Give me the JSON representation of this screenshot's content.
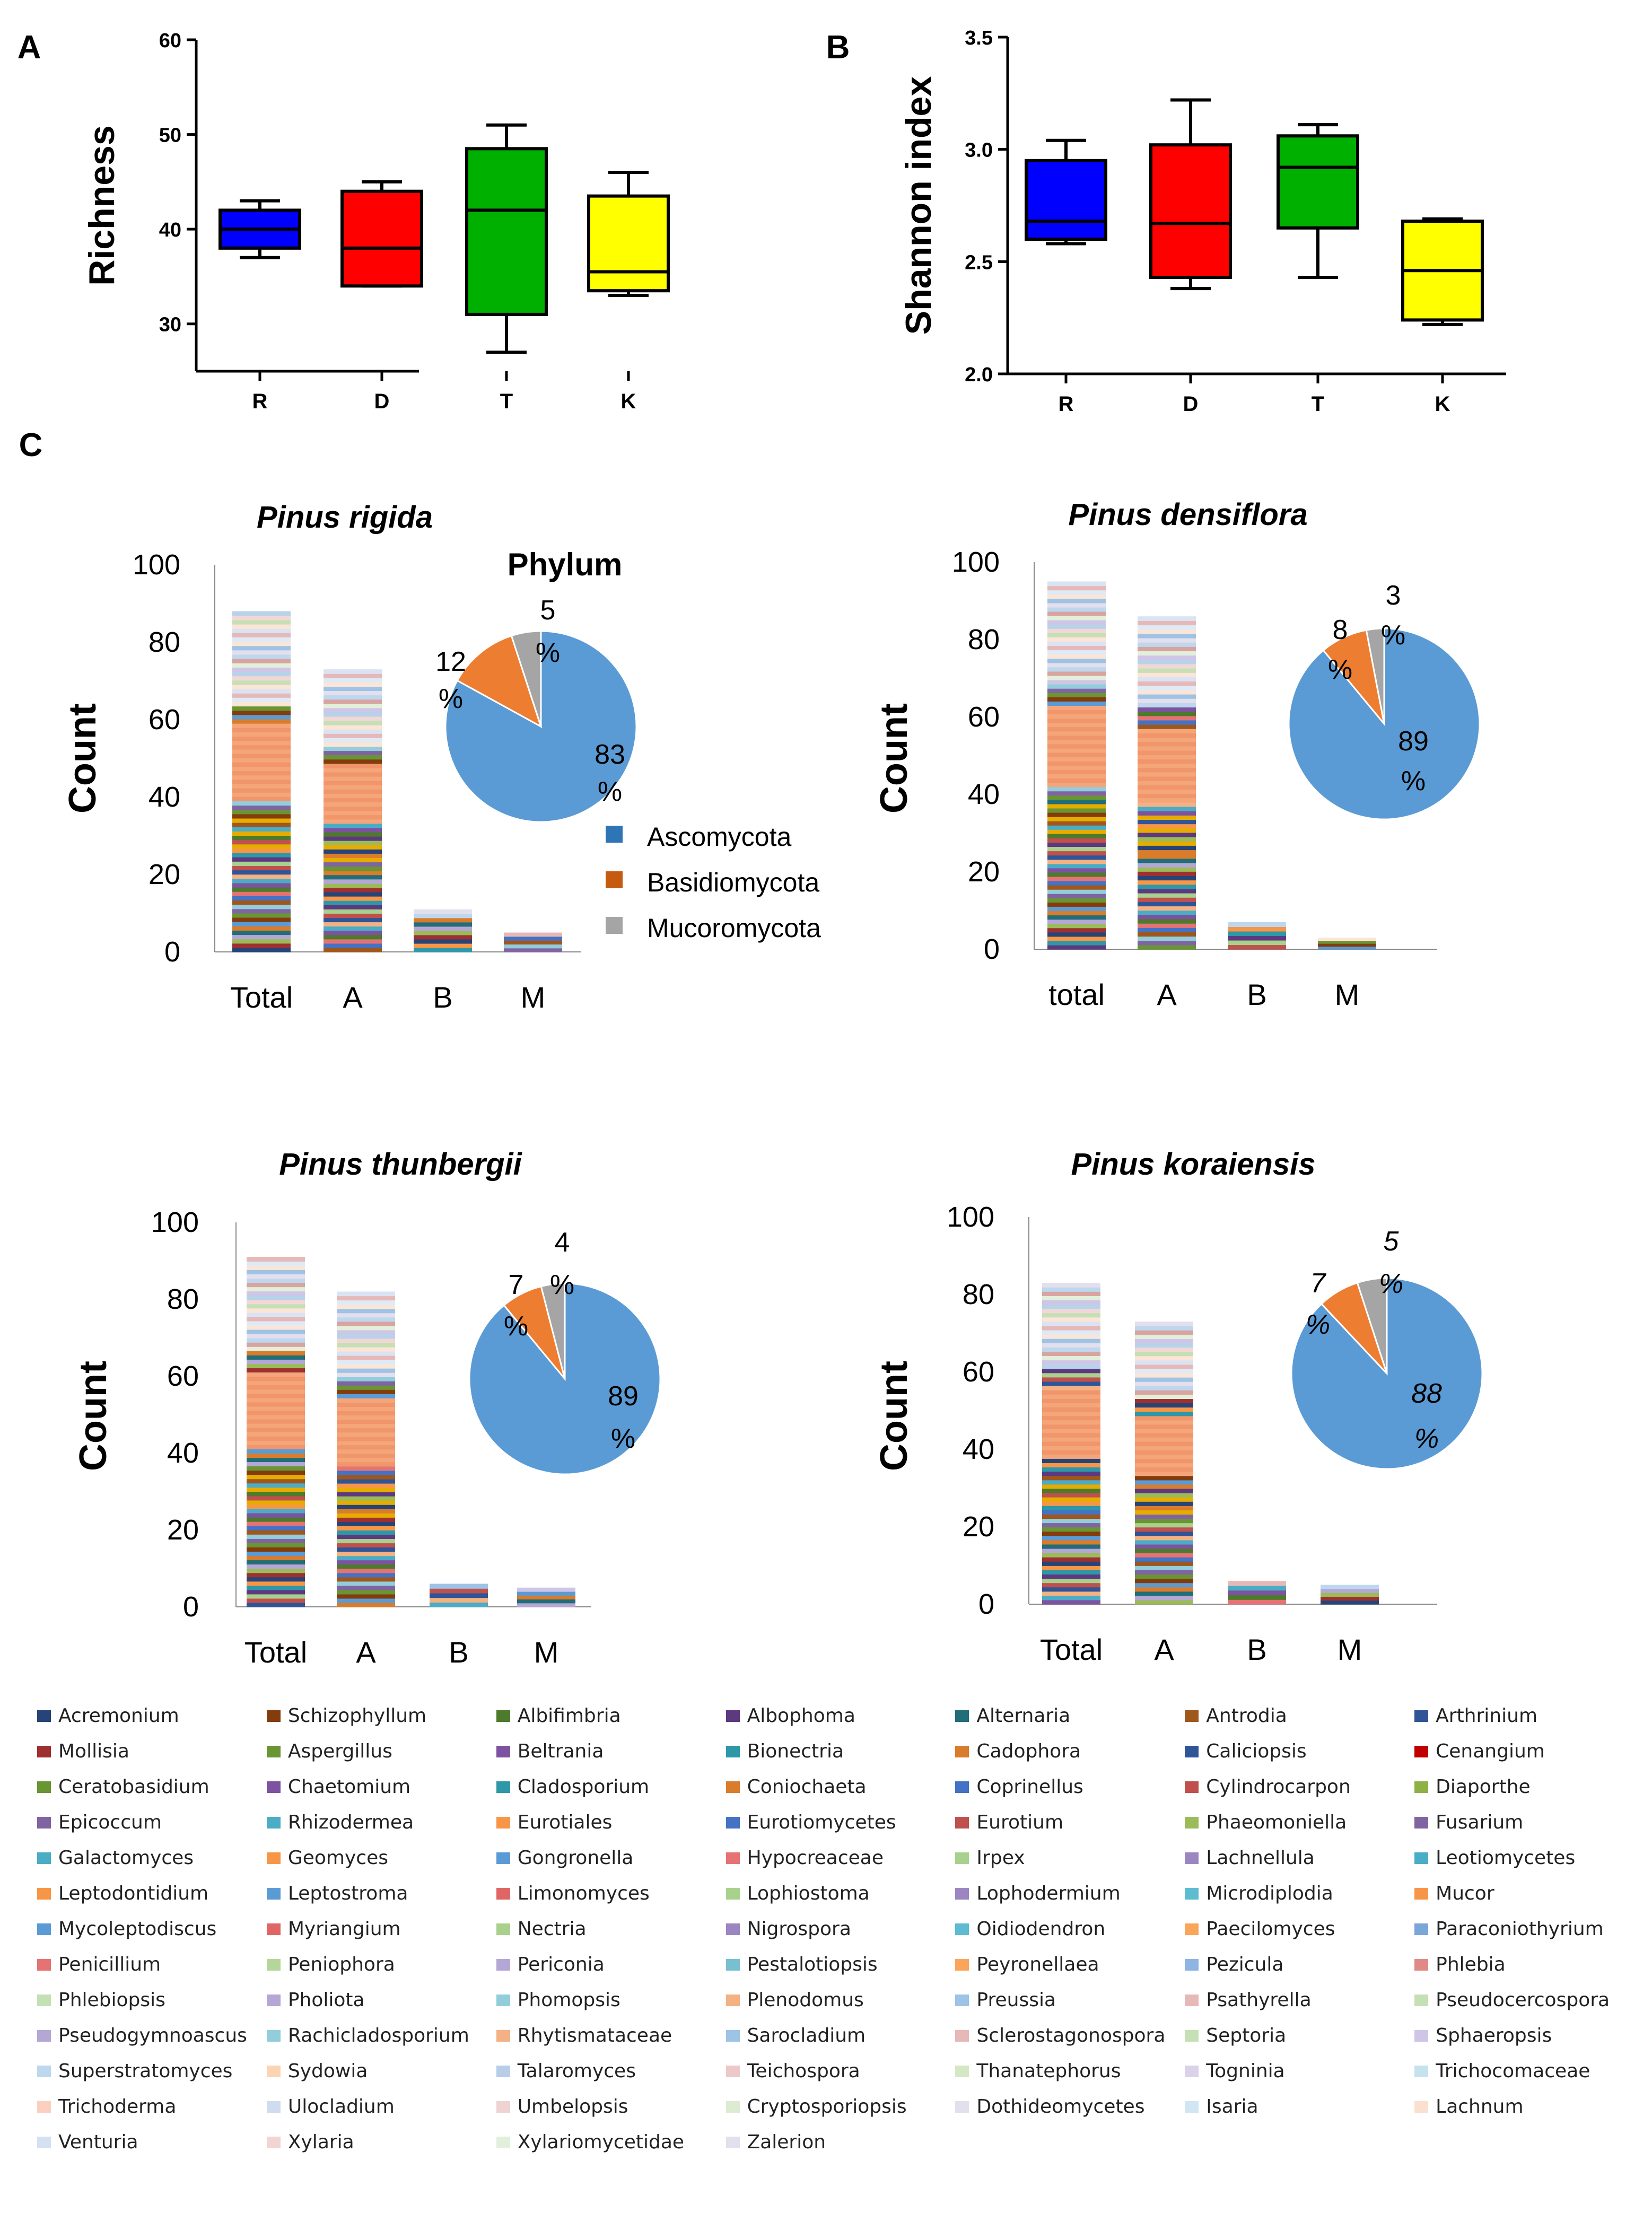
{
  "chart_data": [
    {
      "type": "boxplot",
      "panel_label": "A",
      "ylabel": "Richness",
      "categories": [
        "R",
        "D",
        "T",
        "K"
      ],
      "ylim": [
        25,
        60
      ],
      "yticks": [
        30,
        40,
        50,
        60
      ],
      "boxes": [
        {
          "name": "R",
          "min": 37,
          "q1": 38,
          "median": 40,
          "q3": 42,
          "max": 43,
          "color": "#0000ff"
        },
        {
          "name": "D",
          "min": 34,
          "q1": 34,
          "median": 38,
          "q3": 44,
          "max": 45,
          "color": "#ff0000"
        },
        {
          "name": "T",
          "min": 27,
          "q1": 31,
          "median": 42,
          "q3": 48.5,
          "max": 51,
          "color": "#00b000"
        },
        {
          "name": "K",
          "min": 33,
          "q1": 33.5,
          "median": 35.5,
          "q3": 43.5,
          "max": 46,
          "color": "#ffff00"
        }
      ]
    },
    {
      "type": "boxplot",
      "panel_label": "B",
      "ylabel": "Shannon index",
      "categories": [
        "R",
        "D",
        "T",
        "K"
      ],
      "ylim": [
        2.0,
        3.5
      ],
      "yticks": [
        "2.0",
        "2.5",
        "3.0",
        "3.5"
      ],
      "boxes": [
        {
          "name": "R",
          "min": 2.58,
          "q1": 2.6,
          "median": 2.68,
          "q3": 2.95,
          "max": 3.04,
          "color": "#0000ff"
        },
        {
          "name": "D",
          "min": 2.38,
          "q1": 2.43,
          "median": 2.67,
          "q3": 3.02,
          "max": 3.22,
          "color": "#ff0000"
        },
        {
          "name": "T",
          "min": 2.43,
          "q1": 2.65,
          "median": 2.92,
          "q3": 3.06,
          "max": 3.11,
          "color": "#00b000"
        },
        {
          "name": "K",
          "min": 2.22,
          "q1": 2.24,
          "median": 2.46,
          "q3": 2.68,
          "max": 2.69,
          "color": "#ffff00"
        }
      ]
    },
    {
      "type": "stacked_bar_with_pie",
      "panel_label": "C",
      "title": "Pinus rigida",
      "pie_title": "Phylum",
      "ylabel": "Count",
      "ylim": [
        0,
        100
      ],
      "yticks": [
        0,
        20,
        40,
        60,
        80,
        100
      ],
      "categories": [
        "Total",
        "A",
        "B",
        "M"
      ],
      "values": [
        88,
        73,
        11,
        5
      ],
      "pie": [
        {
          "name": "Ascomycota",
          "value": 83,
          "label_num": "83",
          "label_pct": "%"
        },
        {
          "name": "Basidiomycota",
          "value": 12,
          "label_num": "12",
          "label_pct": "%"
        },
        {
          "name": "Mucoromycota",
          "value": 5,
          "label_num": "5",
          "label_pct": "%"
        }
      ]
    },
    {
      "type": "stacked_bar_with_pie",
      "title": "Pinus densiflora",
      "ylabel": "Count",
      "ylim": [
        0,
        100
      ],
      "yticks": [
        0,
        20,
        40,
        60,
        80,
        100
      ],
      "categories": [
        "total",
        "A",
        "B",
        "M"
      ],
      "values": [
        95,
        86,
        7,
        3
      ],
      "pie": [
        {
          "name": "Ascomycota",
          "value": 89,
          "label_num": "89",
          "label_pct": "%"
        },
        {
          "name": "Basidiomycota",
          "value": 8,
          "label_num": "8",
          "label_pct": "%"
        },
        {
          "name": "Mucoromycota",
          "value": 3,
          "label_num": "3",
          "label_pct": "%"
        }
      ]
    },
    {
      "type": "stacked_bar_with_pie",
      "title": "Pinus thunbergii",
      "ylabel": "Count",
      "ylim": [
        0,
        100
      ],
      "yticks": [
        0,
        20,
        40,
        60,
        80,
        100
      ],
      "categories": [
        "Total",
        "A",
        "B",
        "M"
      ],
      "values": [
        91,
        82,
        6,
        5
      ],
      "pie": [
        {
          "name": "Ascomycota",
          "value": 89,
          "label_num": "89",
          "label_pct": "%"
        },
        {
          "name": "Basidiomycota",
          "value": 7,
          "label_num": "7",
          "label_pct": "%"
        },
        {
          "name": "Mucoromycota",
          "value": 4,
          "label_num": "4",
          "label_pct": "%"
        }
      ]
    },
    {
      "type": "stacked_bar_with_pie",
      "title": "Pinus koraiensis",
      "ylabel": "Count",
      "ylim": [
        0,
        100
      ],
      "yticks": [
        0,
        20,
        40,
        60,
        80,
        100
      ],
      "categories": [
        "Total",
        "A",
        "B",
        "M"
      ],
      "values": [
        83,
        73,
        6,
        5
      ],
      "pie": [
        {
          "name": "Ascomycota",
          "value": 88,
          "label_num": "88",
          "label_pct": "%"
        },
        {
          "name": "Basidiomycota",
          "value": 7,
          "label_num": "7",
          "label_pct": "%"
        },
        {
          "name": "Mucoromycota",
          "value": 5,
          "label_num": "5",
          "label_pct": "%"
        }
      ]
    }
  ],
  "phylum_legend": [
    {
      "name": "Ascomycota",
      "color": "#2e75b6"
    },
    {
      "name": "Basidiomycota",
      "color": "#c55a11"
    },
    {
      "name": "Mucoromycota",
      "color": "#a5a5a5"
    }
  ],
  "pie_colors": [
    "#5b9bd5",
    "#ed7d31",
    "#a5a5a5"
  ],
  "genus_colors": [
    "#264478",
    "#843c0c",
    "#4e7a2b",
    "#5d3a7f",
    "#216d78",
    "#a0571c",
    "#2f5597",
    "#9e3030",
    "#6a9533",
    "#7d52a0",
    "#2e97a8",
    "#d97c2b",
    "#4472c4",
    "#c0504d",
    "#9bbb59",
    "#8064a2",
    "#4bacc6",
    "#f79646",
    "#5b9bd5",
    "#e57373",
    "#a9d18e",
    "#b4a7d6",
    "#92cddc",
    "#f4b183",
    "#9dc3e6",
    "#e6b8b7",
    "#c5e0b4",
    "#cfc5e6",
    "#bdd7ee",
    "#fbe5d6",
    "#dae3f3",
    "#f2d7d5",
    "#e2efda",
    "#e4dfec",
    "#deebf7",
    "#fce4d6",
    "#b7d3ea",
    "#d9a3a0"
  ],
  "genus_legend": [
    "Acremonium",
    "Schizophyllum",
    "Albifimbria",
    "Albophoma",
    "Alternaria",
    "Antrodia",
    "Arthrinium",
    "Mollisia",
    "Aspergillus",
    "Beltrania",
    "Bionectria",
    "Cadophora",
    "Caliciopsis",
    "Cenangium",
    "Ceratobasidium",
    "Chaetomium",
    "Cladosporium",
    "Coniochaeta",
    "Coprinellus",
    "Cylindrocarpon",
    "Diaporthe",
    "Epicoccum",
    "Rhizodermea",
    "Eurotiales",
    "Eurotiomycetes",
    "Eurotium",
    "Phaeomoniella",
    "Fusarium",
    "Galactomyces",
    "Geomyces",
    "Gongronella",
    "Hypocreaceae",
    "Irpex",
    "Lachnellula",
    "Leotiomycetes",
    "Leptodontidium",
    "Leptostroma",
    "Limonomyces",
    "Lophiostoma",
    "Lophodermium",
    "Microdiplodia",
    "Mucor",
    "Mycoleptodiscus",
    "Myriangium",
    "Nectria",
    "Nigrospora",
    "Oidiodendron",
    "Paecilomyces",
    "Paraconiothyrium",
    "Penicillium",
    "Peniophora",
    "Periconia",
    "Pestalotiopsis",
    "Peyronellaea",
    "Pezicula",
    "Phlebia",
    "Phlebiopsis",
    "Pholiota",
    "Phomopsis",
    "Plenodomus",
    "Preussia",
    "Psathyrella",
    "Pseudocercospora",
    "Pseudogymnoascus",
    "Rachicladosporium",
    "Rhytismataceae",
    "Sarocladium",
    "Sclerostagonospora",
    "Septoria",
    "Sphaeropsis",
    "Superstratomyces",
    "Sydowia",
    "Talaromyces",
    "Teichospora",
    "Thanatephorus",
    "Togninia",
    "Trichocomaceae",
    "Trichoderma",
    "Ulocladium",
    "Umbelopsis",
    "Cryptosporiopsis",
    "Dothideomycetes",
    "Isaria",
    "Lachnum",
    "Venturia",
    "Xylaria",
    "Xylariomycetidae",
    "Zalerion"
  ],
  "genus_legend_colors": [
    "#264478",
    "#843c0c",
    "#4e7a2b",
    "#5d3a7f",
    "#216d78",
    "#a0571c",
    "#2f5597",
    "#9e3030",
    "#6a9533",
    "#7d52a0",
    "#2e97a8",
    "#d97c2b",
    "#2f5597",
    "#c00000",
    "#6a9533",
    "#7d52a0",
    "#2e97a8",
    "#d97c2b",
    "#4472c4",
    "#c0504d",
    "#8db145",
    "#8064a2",
    "#4bacc6",
    "#f79646",
    "#4472c4",
    "#c0504d",
    "#9bbb59",
    "#8064a2",
    "#4bacc6",
    "#f79646",
    "#5b9bd5",
    "#e57373",
    "#a9d18e",
    "#9b86c2",
    "#4bacc6",
    "#f79646",
    "#5b9bd5",
    "#e06666",
    "#a9d18e",
    "#9b86c2",
    "#5dbcd2",
    "#f79646",
    "#5b9bd5",
    "#e06666",
    "#a9d18e",
    "#9b86c2",
    "#5dbcd2",
    "#f9a65a",
    "#7aa6d8",
    "#e57373",
    "#b5d69b",
    "#b4a7d6",
    "#78c0d0",
    "#f9a65a",
    "#8eb4e3",
    "#e08a88",
    "#c5e0b4",
    "#b4a7d6",
    "#92cddc",
    "#f4b183",
    "#9dc3e6",
    "#e6b8b7",
    "#c5e0b4",
    "#b4a7d6",
    "#92cddc",
    "#f4b183",
    "#9dc3e6",
    "#e6b8b7",
    "#c5e0b4",
    "#cfc5e6",
    "#bdd7ee",
    "#fbd4b4",
    "#b7cde8",
    "#ecc9c8",
    "#d5e8c6",
    "#d9d2e9",
    "#c6e2ee",
    "#fbd0c0",
    "#cfdcf0",
    "#eed3d2",
    "#dcebd2",
    "#e4dfec",
    "#d2e5f2",
    "#fbe0d2",
    "#d6e0f3",
    "#f2d4d2",
    "#e2efda",
    "#e4dfec"
  ]
}
